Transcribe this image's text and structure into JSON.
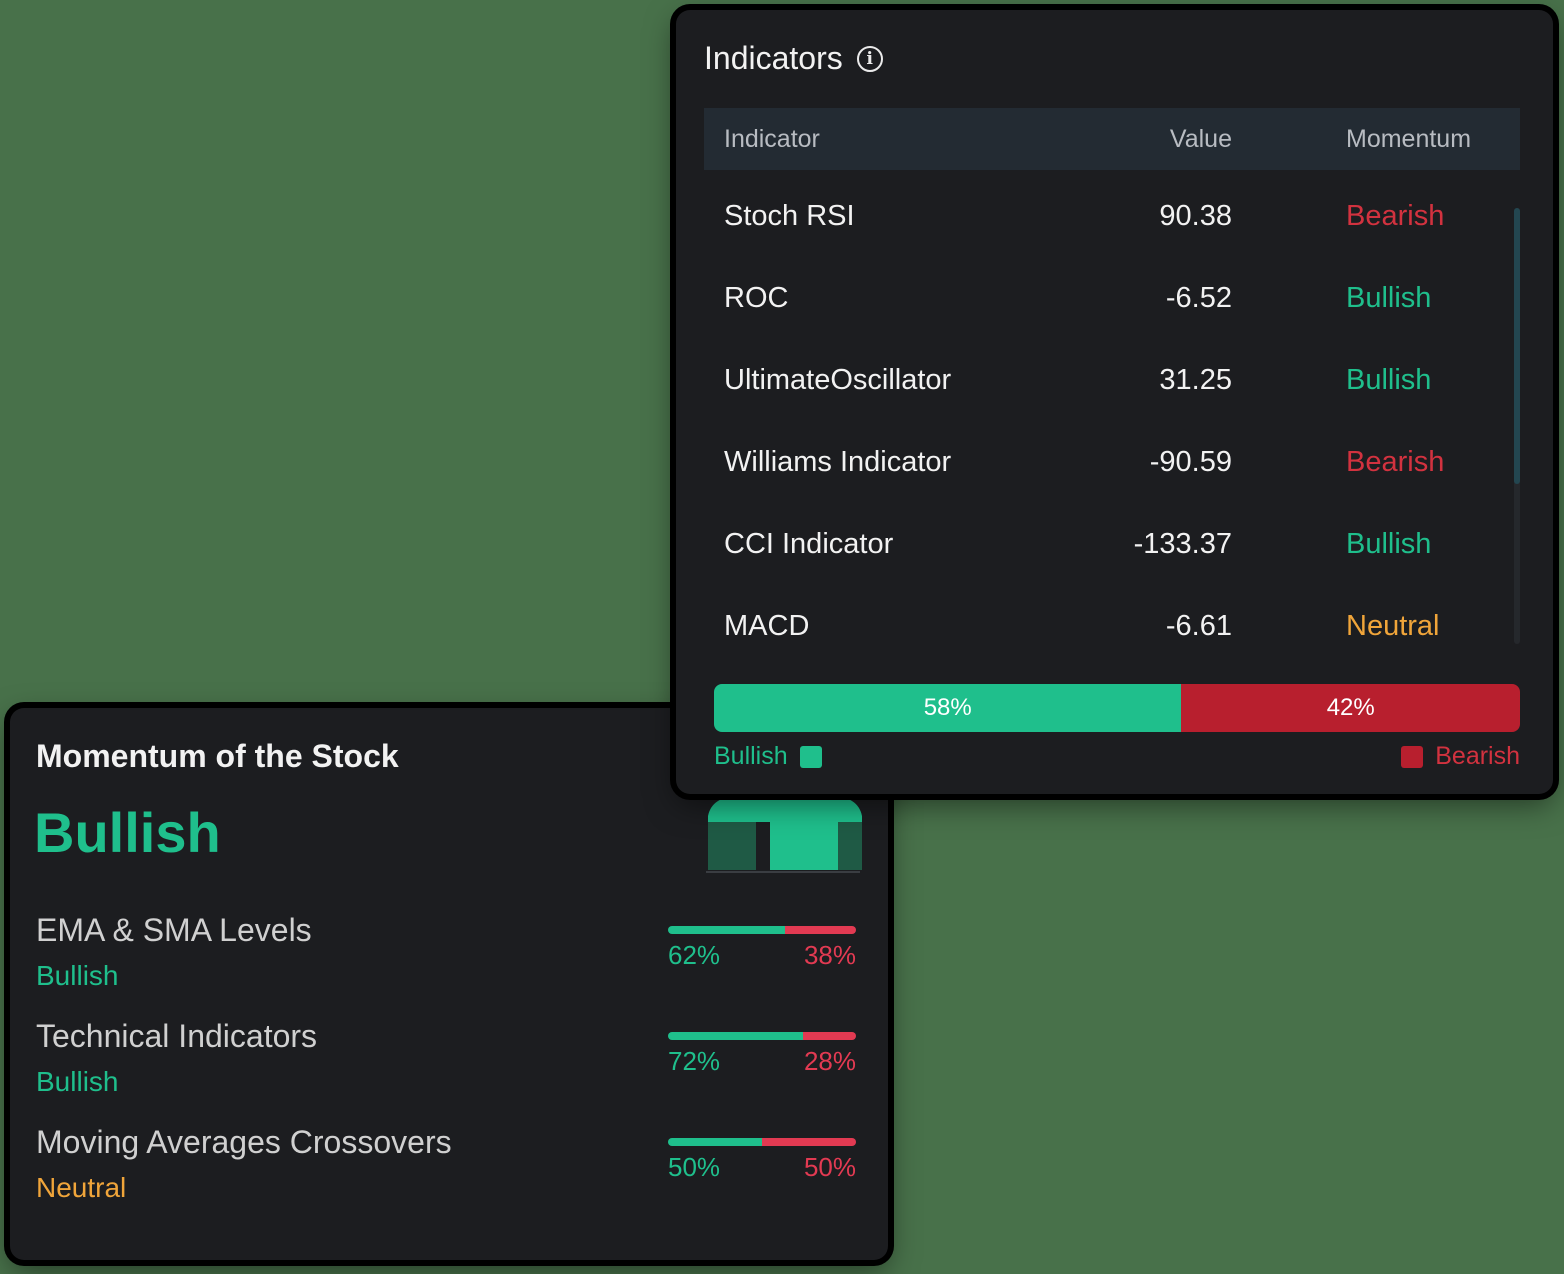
{
  "momentum": {
    "title": "Momentum of the Stock",
    "status": "Bullish",
    "icon": "arrow-up-icon",
    "rows": [
      {
        "label": "EMA & SMA Levels",
        "status": "Bullish",
        "bullish_pct": 62,
        "bearish_pct": 38,
        "bullish_text": "62%",
        "bearish_text": "38%"
      },
      {
        "label": "Technical Indicators",
        "status": "Bullish",
        "bullish_pct": 72,
        "bearish_pct": 28,
        "bullish_text": "72%",
        "bearish_text": "28%"
      },
      {
        "label": "Moving Averages Crossovers",
        "status": "Neutral",
        "bullish_pct": 50,
        "bearish_pct": 50,
        "bullish_text": "50%",
        "bearish_text": "50%"
      }
    ]
  },
  "indicators": {
    "title": "Indicators",
    "info_icon": "info-icon",
    "columns": {
      "indicator": "Indicator",
      "value": "Value",
      "momentum": "Momentum"
    },
    "rows": [
      {
        "name": "Stoch RSI",
        "value": "90.38",
        "momentum": "Bearish"
      },
      {
        "name": "ROC",
        "value": "-6.52",
        "momentum": "Bullish"
      },
      {
        "name": "UltimateOscillator",
        "value": "31.25",
        "momentum": "Bullish"
      },
      {
        "name": "Williams Indicator",
        "value": "-90.59",
        "momentum": "Bearish"
      },
      {
        "name": "CCI Indicator",
        "value": "-133.37",
        "momentum": "Bullish"
      },
      {
        "name": "MACD",
        "value": "-6.61",
        "momentum": "Neutral"
      }
    ],
    "summary": {
      "bullish_pct": 58,
      "bearish_pct": 42,
      "bullish_text": "58%",
      "bearish_text": "42%"
    },
    "legend": {
      "bullish": "Bullish",
      "bearish": "Bearish"
    }
  },
  "colors": {
    "bullish": "#1fbf8c",
    "bearish": "#d2323f",
    "neutral": "#f0a53a",
    "background": "#48714a",
    "card": "#1c1d20"
  }
}
